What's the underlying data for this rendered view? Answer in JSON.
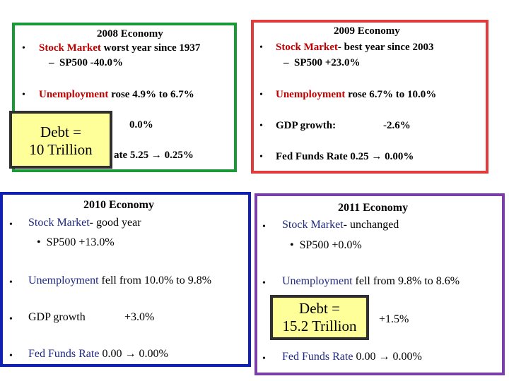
{
  "colors": {
    "p2008": "#1a9a36",
    "p2009": "#e23b3b",
    "p2010": "#1020b0",
    "p2011": "#7a3ea8",
    "debt_bg": "#ffff99",
    "key_red": "#c00000"
  },
  "p2008": {
    "title": "2008 Economy",
    "stock_label": "Stock Market",
    "stock_text": " worst year since 1937",
    "sp500": "SP500 -40.0%",
    "unemp_label": "Unemployment",
    "unemp_text": " rose 4.9% to 6.7%",
    "gdp_value": "0.0%",
    "fed_text": "ate 5.25 → 0.25%"
  },
  "debt2008": {
    "line1": "Debt =",
    "line2": "10 Trillion"
  },
  "p2009": {
    "title": "2009 Economy",
    "stock_label": "Stock Market",
    "stock_text": "- best year since 2003",
    "sp500": "SP500 +23.0%",
    "unemp_label": "Unemployment",
    "unemp_text": " rose 6.7% to 10.0%",
    "gdp_label": "GDP growth:",
    "gdp_value": "-2.6%",
    "fed_text": "Fed Funds Rate 0.25 → 0.00%"
  },
  "p2010": {
    "title": "2010 Economy",
    "stock_label": "Stock Market",
    "stock_text": "- good year",
    "sp500": "SP500 +13.0%",
    "unemp_label": "Unemployment",
    "unemp_text": " fell from 10.0% to 9.8%",
    "gdp_label": "GDP growth",
    "gdp_value": "+3.0%",
    "fed_label": "Fed Funds Rate",
    "fed_text": " 0.00 → 0.00%"
  },
  "p2011": {
    "title": "2011 Economy",
    "stock_label": "Stock Market",
    "stock_text": "- unchanged",
    "sp500": "SP500 +0.0%",
    "unemp_label": "Unemployment",
    "unemp_text": " fell from 9.8% to 8.6%",
    "gdp_value": "+1.5%",
    "fed_label": "Fed Funds Rate",
    "fed_text": " 0.00 → 0.00%"
  },
  "debt2011": {
    "line1": "Debt =",
    "line2": "15.2 Trillion"
  },
  "glyphs": {
    "bullet": "•",
    "dash": "–"
  }
}
